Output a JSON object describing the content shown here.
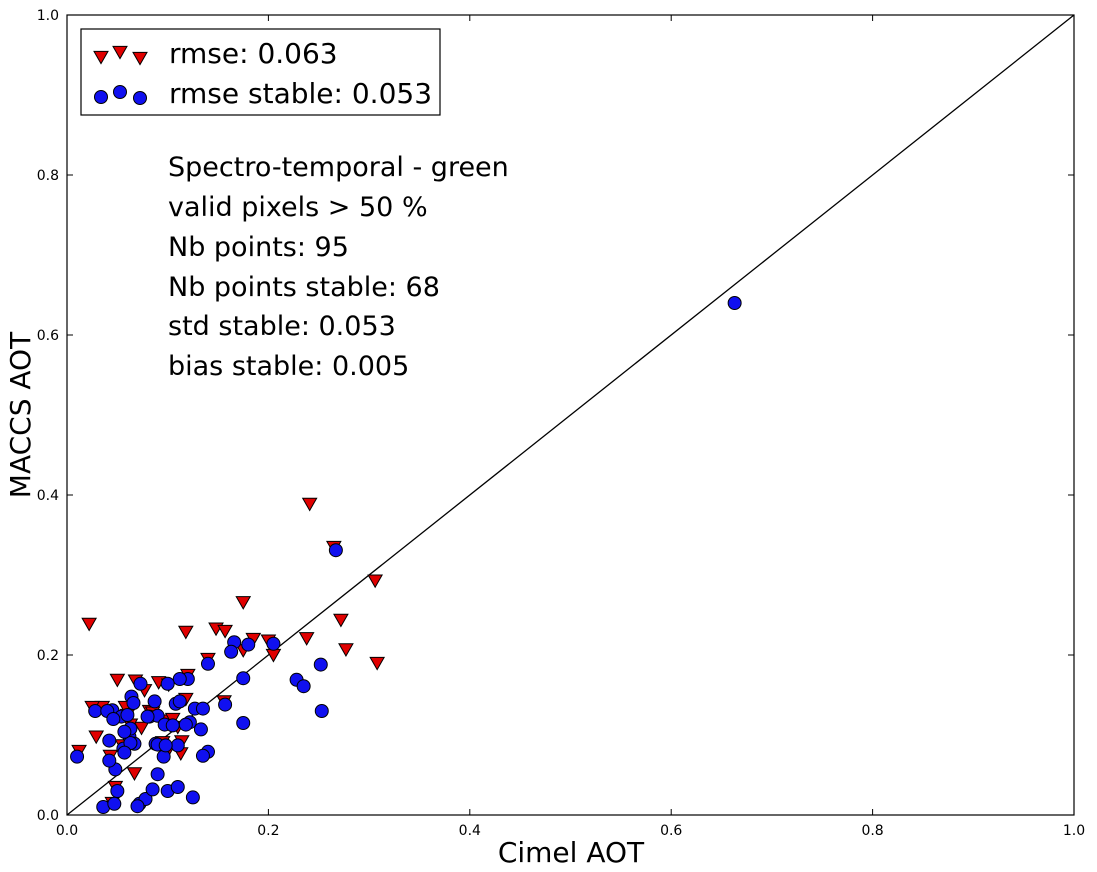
{
  "chart_data": {
    "type": "scatter",
    "title": "",
    "xlabel": "Cimel AOT",
    "ylabel": "MACCS AOT",
    "xlim": [
      0.0,
      1.0
    ],
    "ylim": [
      0.0,
      1.0
    ],
    "xticks": [
      "0.0",
      "0.2",
      "0.4",
      "0.6",
      "0.8",
      "1.0"
    ],
    "yticks": [
      "0.0",
      "0.2",
      "0.4",
      "0.6",
      "0.8",
      "1.0"
    ],
    "grid": false,
    "legend_position": "top-left",
    "reference_line": {
      "x": [
        0.0,
        1.0
      ],
      "y": [
        0.0,
        1.0
      ],
      "color": "#000000"
    },
    "legend": [
      {
        "label": "rmse: 0.063",
        "marker": "triangle-down",
        "color": "#e00000"
      },
      {
        "label": "rmse stable: 0.053",
        "marker": "circle",
        "color": "#1010f0"
      }
    ],
    "annotations": [
      "Spectro-temporal - green",
      "valid pixels > 50 %",
      "Nb points: 95",
      "Nb points stable: 68",
      "std stable: 0.053",
      "bias stable: 0.005"
    ],
    "series": [
      {
        "name": "rmse: 0.063",
        "marker": "triangle-down",
        "color": "#e00000",
        "x": [
          0.022,
          0.029,
          0.05,
          0.067,
          0.077,
          0.074,
          0.091,
          0.101,
          0.11,
          0.113,
          0.118,
          0.148,
          0.157,
          0.175,
          0.175,
          0.185,
          0.205,
          0.238,
          0.241,
          0.272,
          0.277,
          0.306,
          0.308,
          0.265,
          0.035,
          0.06,
          0.045,
          0.096,
          0.12,
          0.14,
          0.012,
          0.048,
          0.06,
          0.095,
          0.063,
          0.082,
          0.105,
          0.055,
          0.2,
          0.068,
          0.118,
          0.043,
          0.058,
          0.085,
          0.114,
          0.025,
          0.156,
          0.1
        ],
        "y": [
          0.239,
          0.098,
          0.169,
          0.052,
          0.156,
          0.109,
          0.166,
          0.163,
          0.11,
          0.077,
          0.229,
          0.233,
          0.23,
          0.266,
          0.206,
          0.22,
          0.2,
          0.221,
          0.389,
          0.244,
          0.207,
          0.293,
          0.19,
          0.335,
          0.135,
          0.125,
          0.015,
          0.118,
          0.175,
          0.195,
          0.08,
          0.035,
          0.098,
          0.091,
          0.113,
          0.13,
          0.12,
          0.087,
          0.218,
          0.168,
          0.145,
          0.074,
          0.135,
          0.128,
          0.092,
          0.135,
          0.142,
          0.08
        ]
      },
      {
        "name": "rmse stable: 0.053",
        "marker": "circle",
        "color": "#1010f0",
        "x": [
          0.663,
          0.267,
          0.253,
          0.205,
          0.166,
          0.175,
          0.14,
          0.12,
          0.112,
          0.1,
          0.087,
          0.073,
          0.064,
          0.045,
          0.028,
          0.04,
          0.054,
          0.06,
          0.066,
          0.082,
          0.09,
          0.108,
          0.112,
          0.127,
          0.135,
          0.157,
          0.163,
          0.18,
          0.228,
          0.235,
          0.252,
          0.14,
          0.135,
          0.122,
          0.11,
          0.096,
          0.088,
          0.08,
          0.062,
          0.056,
          0.048,
          0.042,
          0.05,
          0.072,
          0.078,
          0.09,
          0.1,
          0.11,
          0.125,
          0.175,
          0.01,
          0.036,
          0.042,
          0.047,
          0.063,
          0.067,
          0.085,
          0.097,
          0.118,
          0.133,
          0.09,
          0.098,
          0.07,
          0.063,
          0.057,
          0.057,
          0.046,
          0.105
        ],
        "y": [
          0.64,
          0.331,
          0.13,
          0.214,
          0.216,
          0.171,
          0.189,
          0.17,
          0.17,
          0.164,
          0.142,
          0.164,
          0.148,
          0.131,
          0.13,
          0.13,
          0.123,
          0.125,
          0.14,
          0.123,
          0.124,
          0.139,
          0.142,
          0.133,
          0.133,
          0.138,
          0.204,
          0.213,
          0.169,
          0.161,
          0.188,
          0.079,
          0.074,
          0.116,
          0.087,
          0.073,
          0.089,
          0.123,
          0.098,
          0.083,
          0.057,
          0.068,
          0.03,
          0.014,
          0.02,
          0.051,
          0.03,
          0.035,
          0.022,
          0.115,
          0.073,
          0.01,
          0.093,
          0.014,
          0.108,
          0.089,
          0.032,
          0.113,
          0.113,
          0.107,
          0.088,
          0.087,
          0.011,
          0.09,
          0.078,
          0.104,
          0.12,
          0.112
        ]
      }
    ]
  }
}
